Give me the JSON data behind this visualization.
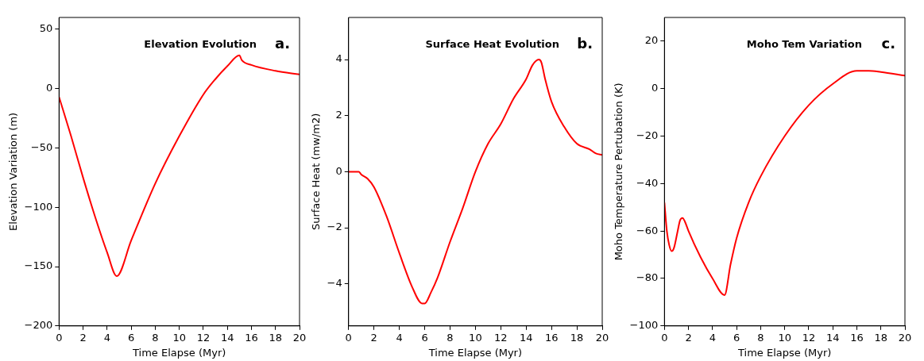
{
  "chart_data": [
    {
      "type": "line",
      "title": "Elevation Evolution",
      "annotations": [
        "a."
      ],
      "xlabel": "Time Elapse (Myr)",
      "ylabel": "Elevation Variation (m)",
      "xlim": [
        0,
        20
      ],
      "xticks": [
        0,
        2,
        4,
        6,
        8,
        10,
        12,
        14,
        16,
        18,
        20
      ],
      "ylim": [
        -200,
        60
      ],
      "yticks": [
        -200,
        -150,
        -100,
        -50,
        0,
        50
      ],
      "grid": false,
      "legend": false,
      "marker": "none",
      "line_style": "solid",
      "series": [
        {
          "color": "#ff0000",
          "x": [
            0,
            1,
            2,
            3,
            4,
            4.8,
            6,
            8,
            10,
            12,
            13,
            14,
            15,
            15.2,
            16,
            18,
            20
          ],
          "values": [
            -7,
            -40,
            -75,
            -108,
            -138,
            -158,
            -128,
            -80,
            -40,
            -5,
            8,
            19,
            28,
            24,
            20,
            15,
            12
          ]
        }
      ]
    },
    {
      "type": "line",
      "title": "Surface Heat Evolution",
      "annotations": [
        "b."
      ],
      "xlabel": "Time Elapse (Myr)",
      "ylabel": "Surface Heat (mw/m2)",
      "xlim": [
        0,
        20
      ],
      "xticks": [
        0,
        2,
        4,
        6,
        8,
        10,
        12,
        14,
        16,
        18,
        20
      ],
      "ylim": [
        -5.5,
        5.5
      ],
      "yticks": [
        -4,
        -2,
        0,
        2,
        4
      ],
      "grid": false,
      "legend": false,
      "marker": "none",
      "line_style": "solid",
      "series": [
        {
          "color": "#ff0000",
          "x": [
            0,
            0.8,
            1,
            1.5,
            2,
            3,
            4,
            5,
            5.8,
            6,
            6.5,
            7,
            8,
            9,
            10,
            11,
            12,
            13,
            14,
            14.5,
            15,
            15.2,
            15.5,
            16,
            17,
            18,
            19,
            19.5,
            20
          ],
          "values": [
            0,
            0,
            -0.1,
            -0.25,
            -0.55,
            -1.6,
            -2.9,
            -4.1,
            -4.7,
            -4.7,
            -4.3,
            -3.8,
            -2.5,
            -1.3,
            0,
            1.0,
            1.7,
            2.6,
            3.3,
            3.8,
            4.0,
            3.9,
            3.3,
            2.5,
            1.6,
            1.0,
            0.8,
            0.65,
            0.6
          ]
        }
      ]
    },
    {
      "type": "line",
      "title": "Moho Tem Variation",
      "annotations": [
        "c."
      ],
      "xlabel": "Time Elapse (Myr)",
      "ylabel": "Moho Temperature Pertubation (K)",
      "xlim": [
        0,
        20
      ],
      "xticks": [
        0,
        2,
        4,
        6,
        8,
        10,
        12,
        14,
        16,
        18,
        20
      ],
      "ylim": [
        -100,
        30
      ],
      "yticks": [
        -100,
        -80,
        -60,
        -40,
        -20,
        0,
        20
      ],
      "grid": false,
      "legend": false,
      "marker": "none",
      "line_style": "solid",
      "series": [
        {
          "color": "#ff0000",
          "x": [
            0,
            0.2,
            0.4,
            0.6,
            0.8,
            1.1,
            1.3,
            1.5,
            1.7,
            2,
            3,
            4,
            5,
            5.5,
            6,
            7,
            8,
            10,
            12,
            14,
            16,
            17,
            18,
            20
          ],
          "values": [
            -48,
            -60,
            -66,
            -68.5,
            -67,
            -60,
            -55.5,
            -54.5,
            -56,
            -60,
            -71,
            -80,
            -87,
            -74,
            -63,
            -48,
            -37,
            -20,
            -7,
            2,
            7.5,
            7.5,
            7,
            5.5
          ]
        }
      ]
    }
  ]
}
